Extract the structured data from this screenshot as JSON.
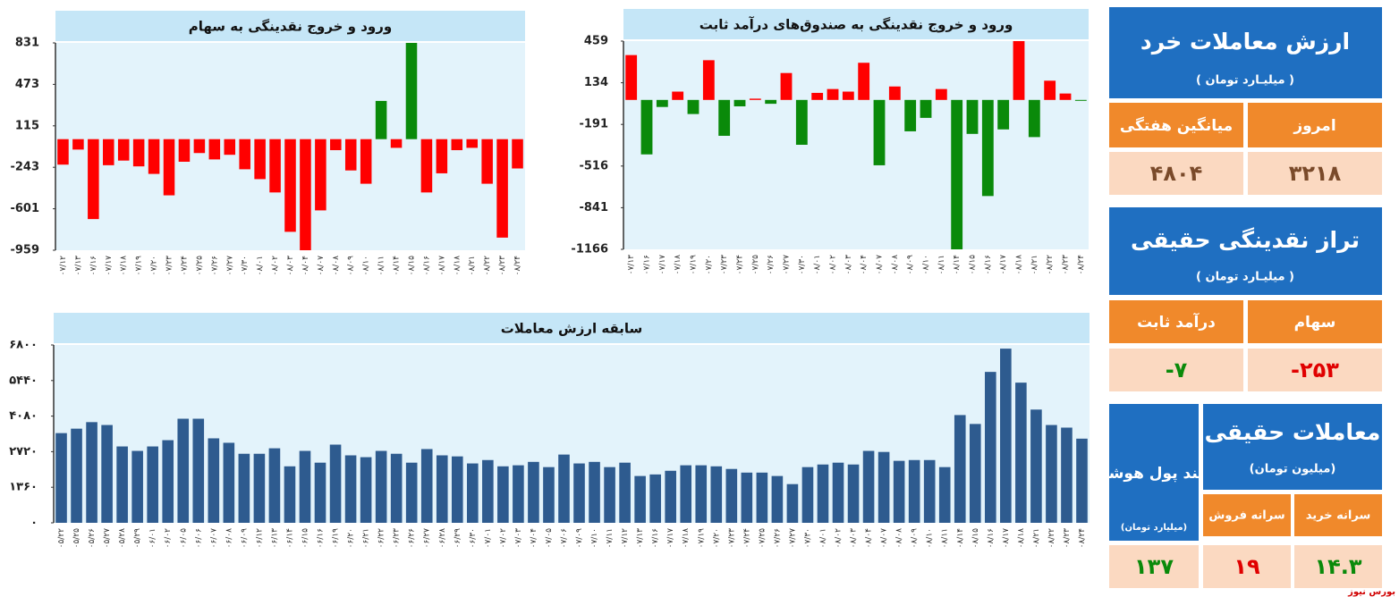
{
  "chart_data": [
    {
      "type": "bar",
      "title": "ورود و خروج نقدینگی به سهام",
      "categories": [
        "۰۷/۱۲",
        "۰۷/۱۳",
        "۰۷/۱۶",
        "۰۷/۱۷",
        "۰۷/۱۸",
        "۰۷/۱۹",
        "۰۷/۲۰",
        "۰۷/۲۳",
        "۰۷/۲۴",
        "۰۷/۲۵",
        "۰۷/۲۶",
        "۰۷/۲۷",
        "۰۷/۳۰",
        "۰۸/۰۱",
        "۰۸/۰۲",
        "۰۸/۰۳",
        "۰۸/۰۴",
        "۰۸/۰۷",
        "۰۸/۰۸",
        "۰۸/۰۹",
        "۰۸/۱۰",
        "۰۸/۱۱",
        "۰۸/۱۴",
        "۰۸/۱۵",
        "۰۸/۱۶",
        "۰۸/۱۷",
        "۰۸/۱۸",
        "۰۸/۲۱",
        "۰۸/۲۲",
        "۰۸/۲۳",
        "۰۸/۲۴"
      ],
      "values": [
        -220,
        -90,
        -690,
        -225,
        -185,
        -235,
        -300,
        -485,
        -195,
        -120,
        -175,
        -135,
        -260,
        -345,
        -460,
        -800,
        -959,
        -615,
        -95,
        -270,
        -385,
        330,
        -75,
        831,
        -460,
        -295,
        -95,
        -75,
        -385,
        -850,
        -253
      ],
      "ylim": [
        -959,
        831
      ],
      "yticks": [
        831,
        473,
        115,
        -243,
        -601,
        -959
      ],
      "positive_color": "#0a8a0a",
      "negative_color": "#ff0000"
    },
    {
      "type": "bar",
      "title": "ورود و خروج نقدینگی به صندوق‌های درآمد ثابت",
      "categories": [
        "۰۷/۱۳",
        "۰۷/۱۶",
        "۰۷/۱۷",
        "۰۷/۱۸",
        "۰۷/۱۹",
        "۰۷/۲۰",
        "۰۷/۲۳",
        "۰۷/۲۴",
        "۰۷/۲۵",
        "۰۷/۲۶",
        "۰۷/۲۷",
        "۰۷/۳۰",
        "۰۸/۰۱",
        "۰۸/۰۲",
        "۰۸/۰۳",
        "۰۸/۰۴",
        "۰۸/۰۷",
        "۰۸/۰۸",
        "۰۸/۰۹",
        "۰۸/۱۰",
        "۰۸/۱۱",
        "۰۸/۱۴",
        "۰۸/۱۵",
        "۰۸/۱۶",
        "۰۸/۱۷",
        "۰۸/۱۸",
        "۰۸/۲۱",
        "۰۸/۲۲",
        "۰۸/۲۳",
        "۰۸/۲۴"
      ],
      "values": [
        350,
        -425,
        -55,
        65,
        -110,
        310,
        -280,
        -50,
        10,
        -30,
        210,
        -350,
        55,
        85,
        65,
        290,
        -510,
        105,
        -245,
        -140,
        85,
        -1166,
        -265,
        -750,
        -230,
        459,
        -290,
        150,
        50,
        -7
      ],
      "ylim": [
        -1166,
        459
      ],
      "yticks": [
        459,
        134,
        -191,
        -516,
        -841,
        -1166
      ],
      "positive_color": "#ff0000",
      "negative_color": "#0a8a0a"
    },
    {
      "type": "bar",
      "title": "سابقه ارزش معاملات",
      "categories": [
        "۰۵/۲۲",
        "۰۵/۲۵",
        "۰۵/۲۶",
        "۰۵/۲۷",
        "۰۵/۲۸",
        "۰۵/۲۹",
        "۰۶/۰۱",
        "۰۶/۰۲",
        "۰۶/۰۵",
        "۰۶/۰۶",
        "۰۶/۰۷",
        "۰۶/۰۸",
        "۰۶/۰۹",
        "۰۶/۱۲",
        "۰۶/۱۳",
        "۰۶/۱۴",
        "۰۶/۱۵",
        "۰۶/۱۶",
        "۰۶/۱۹",
        "۰۶/۲۰",
        "۰۶/۲۱",
        "۰۶/۲۲",
        "۰۶/۲۳",
        "۰۶/۲۶",
        "۰۶/۲۷",
        "۰۶/۲۸",
        "۰۶/۲۹",
        "۰۶/۳۰",
        "۰۷/۰۱",
        "۰۷/۰۲",
        "۰۷/۰۳",
        "۰۷/۰۴",
        "۰۷/۰۵",
        "۰۷/۰۶",
        "۰۷/۰۹",
        "۰۷/۱۰",
        "۰۷/۱۱",
        "۰۷/۱۲",
        "۰۷/۱۳",
        "۰۷/۱۶",
        "۰۷/۱۷",
        "۰۷/۱۸",
        "۰۷/۱۹",
        "۰۷/۲۰",
        "۰۷/۲۳",
        "۰۷/۲۴",
        "۰۷/۲۵",
        "۰۷/۲۶",
        "۰۷/۲۷",
        "۰۷/۳۰",
        "۰۸/۰۱",
        "۰۸/۰۲",
        "۰۸/۰۳",
        "۰۸/۰۴",
        "۰۸/۰۷",
        "۰۸/۰۸",
        "۰۸/۰۹",
        "۰۸/۱۰",
        "۰۸/۱۱",
        "۰۸/۱۴",
        "۰۸/۱۵",
        "۰۸/۱۶",
        "۰۸/۱۷",
        "۰۸/۱۸",
        "۰۸/۲۱",
        "۰۸/۲۲",
        "۰۸/۲۳",
        "۰۸/۲۴"
      ],
      "values": [
        3430,
        3600,
        3850,
        3740,
        2920,
        2750,
        2920,
        3160,
        3980,
        3980,
        3230,
        3060,
        2640,
        2640,
        2850,
        2160,
        2750,
        2300,
        2990,
        2580,
        2510,
        2750,
        2640,
        2300,
        2820,
        2580,
        2540,
        2270,
        2400,
        2160,
        2200,
        2330,
        2130,
        2610,
        2270,
        2330,
        2130,
        2300,
        1790,
        1850,
        1990,
        2200,
        2200,
        2160,
        2060,
        1920,
        1920,
        1790,
        1480,
        2130,
        2230,
        2300,
        2230,
        2750,
        2710,
        2370,
        2400,
        2400,
        2130,
        4120,
        3780,
        5770,
        6660,
        5360,
        4330,
        3740,
        3640,
        3218
      ],
      "ylim": [
        0,
        6800
      ],
      "yticks": [
        {
          "value": 0,
          "label": "۰"
        },
        {
          "value": 1360,
          "label": "۱۳۶۰"
        },
        {
          "value": 2720,
          "label": "۲۷۲۰"
        },
        {
          "value": 4080,
          "label": "۴۰۸۰"
        },
        {
          "value": 5440,
          "label": "۵۴۴۰"
        },
        {
          "value": 6800,
          "label": "۶۸۰۰"
        }
      ],
      "color": "#2e5b8f"
    }
  ],
  "panel": {
    "retail": {
      "title": "ارزش معاملات خرد",
      "unit": "( میلیـارد تومان )",
      "headers": [
        "امروز",
        "میانگین هفتگی"
      ],
      "values": [
        "۳۲۱۸",
        "۴۸۰۴"
      ]
    },
    "balance": {
      "title": "تراز نقدینگی حقیقی",
      "unit": "( میلیـارد تومان )",
      "headers": [
        "سهام",
        "درآمد ثابت"
      ],
      "values": [
        "-۲۵۳",
        "-۷"
      ]
    },
    "individual": {
      "title": "معاملات حقیقی",
      "unit": "(میلیون تومان)",
      "headers": [
        "سرانه خرید",
        "سرانه فروش"
      ],
      "values": [
        "۱۴.۳",
        "۱۹"
      ]
    },
    "smart": {
      "title": "برآیند پول هوشمند",
      "unit": "(میلیارد تومان)",
      "value": "۱۳۷"
    },
    "source": "بورس نیوز"
  }
}
